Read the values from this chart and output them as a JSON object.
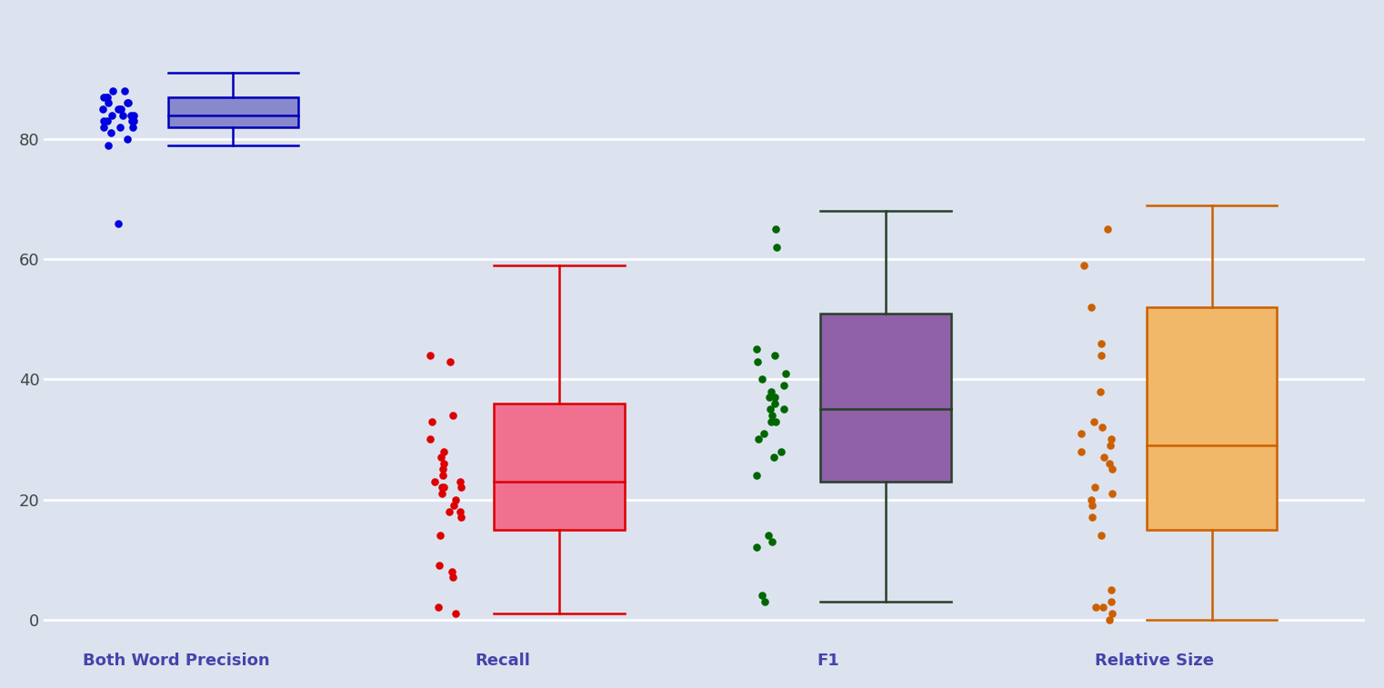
{
  "categories": [
    "Both Word Precision",
    "Recall",
    "F1",
    "Relative Size"
  ],
  "background_color": "#dce3ef",
  "grid_color": "#ffffff",
  "bwp_scatter": [
    79,
    80,
    81,
    82,
    82,
    82,
    83,
    83,
    83,
    83,
    84,
    84,
    84,
    84,
    85,
    85,
    85,
    85,
    86,
    86,
    86,
    87,
    87,
    87,
    88,
    88,
    66
  ],
  "recall_scatter": [
    1,
    2,
    7,
    8,
    9,
    14,
    17,
    18,
    18,
    19,
    20,
    21,
    22,
    22,
    22,
    23,
    23,
    24,
    25,
    26,
    27,
    28,
    30,
    33,
    34,
    43,
    44
  ],
  "f1_scatter": [
    3,
    4,
    12,
    13,
    14,
    24,
    27,
    28,
    30,
    31,
    33,
    33,
    34,
    35,
    35,
    36,
    37,
    37,
    38,
    39,
    40,
    41,
    43,
    44,
    45,
    62,
    65
  ],
  "relsize_scatter": [
    0,
    1,
    2,
    2,
    5,
    14,
    17,
    19,
    20,
    21,
    22,
    25,
    26,
    27,
    28,
    29,
    30,
    31,
    32,
    33,
    38,
    44,
    46,
    52,
    59,
    65,
    3
  ],
  "boxes": [
    {
      "q1": 82,
      "median": 84,
      "q3": 87,
      "whislo": 79,
      "whishi": 91,
      "face": "#8888cc",
      "edge": "#0000bb",
      "scatter": "#0000dd"
    },
    {
      "q1": 15,
      "median": 23,
      "q3": 36,
      "whislo": 1,
      "whishi": 59,
      "face": "#f07090",
      "edge": "#dd0000",
      "scatter": "#dd0000"
    },
    {
      "q1": 23,
      "median": 35,
      "q3": 51,
      "whislo": 3,
      "whishi": 68,
      "face": "#9060a8",
      "edge": "#284028",
      "scatter": "#006600"
    },
    {
      "q1": 15,
      "median": 29,
      "q3": 52,
      "whislo": 0,
      "whishi": 69,
      "face": "#f0b868",
      "edge": "#cc6000",
      "scatter": "#cc6000"
    }
  ],
  "ylim": [
    -3,
    100
  ],
  "yticks": [
    0,
    20,
    40,
    60,
    80
  ],
  "figsize": [
    15.22,
    7.57
  ],
  "dpi": 100,
  "scatter_jitter": 0.05,
  "scatter_size": 38
}
